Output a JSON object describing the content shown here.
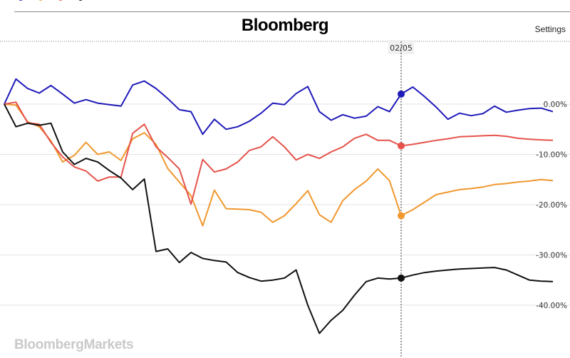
{
  "header": {
    "brand": "Bloomberg",
    "settings_label": "Settings"
  },
  "top_strip": {
    "legend": [
      {
        "label": "",
        "color": "#1f1ab8"
      },
      {
        "label": "",
        "color": "#f0982e"
      },
      {
        "label": "",
        "color": "#e5534b"
      },
      {
        "label": "",
        "color": "#111111"
      }
    ]
  },
  "watermark": "BloombergMarkets",
  "crosshair": {
    "date_label": "02/05",
    "index": 34
  },
  "chart_data": {
    "type": "line",
    "title": "",
    "xlabel": "",
    "ylabel": "",
    "y_unit": "%",
    "ylim": [
      -48,
      8
    ],
    "yticks": [
      {
        "value": 0,
        "label": "0.00%"
      },
      {
        "value": -10,
        "label": "-10.00%"
      },
      {
        "value": -20,
        "label": "-20.00%"
      },
      {
        "value": -30,
        "label": "-30.00%"
      },
      {
        "value": -40,
        "label": "-40.00%"
      }
    ],
    "grid": true,
    "legend": "top",
    "x": [
      0,
      1,
      2,
      3,
      4,
      5,
      6,
      7,
      8,
      9,
      10,
      11,
      12,
      13,
      14,
      15,
      16,
      17,
      18,
      19,
      20,
      21,
      22,
      23,
      24,
      25,
      26,
      27,
      28,
      29,
      30,
      31,
      32,
      33,
      34,
      35,
      36,
      37,
      38,
      39,
      40,
      41,
      42,
      43,
      44,
      45,
      46,
      47
    ],
    "series": [
      {
        "color": "#1f1ab8",
        "values": [
          0.0,
          5.0,
          3.1,
          2.2,
          3.7,
          2.0,
          0.2,
          0.9,
          0.2,
          -0.1,
          -0.4,
          3.8,
          4.6,
          3.1,
          1.1,
          -1.1,
          -1.5,
          -6.0,
          -3.0,
          -5.0,
          -4.5,
          -3.4,
          -1.8,
          0.2,
          -0.1,
          2.1,
          3.5,
          -1.5,
          -3.2,
          -2.1,
          -2.8,
          -2.4,
          -0.5,
          -1.5,
          2.0,
          3.4,
          1.5,
          -0.6,
          -3.0,
          -1.8,
          -2.3,
          -1.9,
          -0.4,
          -1.6,
          -1.2,
          -0.9,
          -0.8,
          -1.5
        ]
      },
      {
        "color": "#f0982e",
        "values": [
          0.0,
          -0.2,
          -3.5,
          -4.5,
          -7.3,
          -11.5,
          -10.2,
          -7.6,
          -10.0,
          -9.5,
          -11.2,
          -6.9,
          -5.7,
          -8.0,
          -12.8,
          -15.5,
          -18.2,
          -24.2,
          -17.1,
          -20.8,
          -20.9,
          -21.0,
          -21.5,
          -23.5,
          -22.2,
          -19.8,
          -17.2,
          -22.0,
          -23.5,
          -19.2,
          -17.0,
          -15.3,
          -12.9,
          -15.2,
          -22.2,
          -21.0,
          -19.5,
          -18.0,
          -17.5,
          -17.0,
          -16.8,
          -16.5,
          -16.0,
          -15.8,
          -15.5,
          -15.3,
          -15.0,
          -15.2
        ]
      },
      {
        "color": "#e5534b",
        "values": [
          0.0,
          0.4,
          -3.7,
          -4.0,
          -7.6,
          -10.5,
          -12.5,
          -13.3,
          -15.3,
          -14.5,
          -14.5,
          -5.8,
          -4.0,
          -8.5,
          -10.6,
          -12.9,
          -19.9,
          -11.0,
          -13.5,
          -12.9,
          -11.5,
          -9.2,
          -8.5,
          -6.5,
          -8.5,
          -11.1,
          -10.0,
          -10.8,
          -9.5,
          -8.5,
          -6.8,
          -6.0,
          -7.2,
          -7.2,
          -8.3,
          -8.0,
          -7.6,
          -7.2,
          -6.9,
          -6.5,
          -6.4,
          -6.3,
          -6.2,
          -6.4,
          -6.8,
          -7.0,
          -7.1,
          -7.2
        ]
      },
      {
        "color": "#111111",
        "values": [
          0.0,
          -4.5,
          -3.8,
          -4.2,
          -3.8,
          -9.5,
          -12.0,
          -10.8,
          -11.5,
          -13.2,
          -14.7,
          -17.0,
          -14.9,
          -29.3,
          -28.8,
          -31.5,
          -29.5,
          -30.7,
          -31.1,
          -31.4,
          -33.5,
          -34.5,
          -35.2,
          -35.0,
          -34.6,
          -33.0,
          -40.0,
          -45.6,
          -43.0,
          -41.0,
          -38.0,
          -35.3,
          -34.6,
          -34.8,
          -34.6,
          -34.0,
          -33.5,
          -33.2,
          -33.0,
          -32.8,
          -32.7,
          -32.6,
          -32.5,
          -33.0,
          -34.0,
          -35.0,
          -35.2,
          -35.3
        ]
      }
    ]
  }
}
